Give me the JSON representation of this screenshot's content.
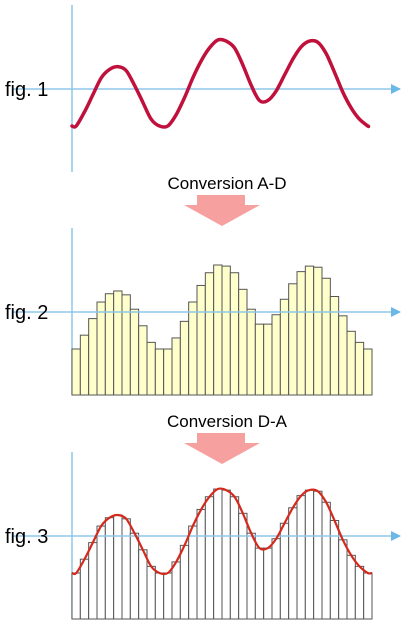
{
  "figures": [
    {
      "label": "fig. 1"
    },
    {
      "label": "fig. 2"
    },
    {
      "label": "fig. 3"
    }
  ],
  "conversions": [
    {
      "label": "Conversion A-D"
    },
    {
      "label": "Conversion D-A"
    }
  ],
  "colors": {
    "axis": "#8fc6e8",
    "arrow_head": "#6ab8e6",
    "signal": "#c0103c",
    "bar_fill_digital": "#ffffcc",
    "bar_fill_analog": "#ffffff",
    "bar_stroke": "#555555",
    "reconstructed": "#d42a1e",
    "conversion_arrow": "#f7a0a0"
  },
  "samples": [
    0.0,
    0.25,
    0.55,
    0.85,
    1.0,
    1.05,
    0.98,
    0.72,
    0.42,
    0.12,
    0.0,
    0.0,
    0.2,
    0.5,
    0.85,
    1.15,
    1.38,
    1.52,
    1.5,
    1.38,
    1.08,
    0.72,
    0.45,
    0.45,
    0.62,
    0.9,
    1.18,
    1.4,
    1.5,
    1.48,
    1.28,
    0.95,
    0.6,
    0.32,
    0.12,
    0.0
  ]
}
